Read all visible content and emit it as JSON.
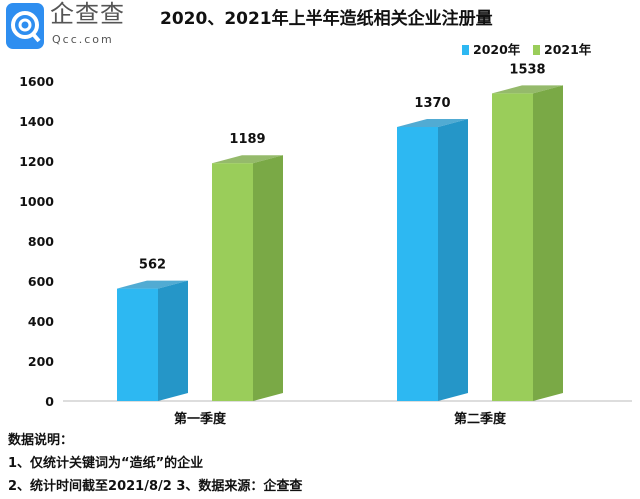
{
  "logo": {
    "cn": "企查查",
    "en": "Qcc.com"
  },
  "colors": {
    "2020": "#2db8f2",
    "2020_side": "#2596c8",
    "2021": "#9acd5a",
    "2021_side": "#7aa946",
    "logo": "#2e8ef0"
  },
  "notes": {
    "heading": "数据说明：",
    "line1": "1、仅统计关键词为“造纸”的企业",
    "line2": "2、统计时间截至2021/8/2  3、数据来源：企查查"
  },
  "chart_data": {
    "type": "bar",
    "title": "2020、2021年上半年造纸相关企业注册量",
    "categories": [
      "第一季度",
      "第二季度"
    ],
    "series": [
      {
        "name": "2020年",
        "values": [
          562,
          1370
        ]
      },
      {
        "name": "2021年",
        "values": [
          1189,
          1538
        ]
      }
    ],
    "ylim": [
      0,
      1600
    ],
    "yticks": [
      "0",
      "200",
      "400",
      "600",
      "800",
      "1000",
      "1200",
      "1400",
      "1600"
    ],
    "legend": "top-right",
    "grid": false,
    "style": "3d"
  }
}
